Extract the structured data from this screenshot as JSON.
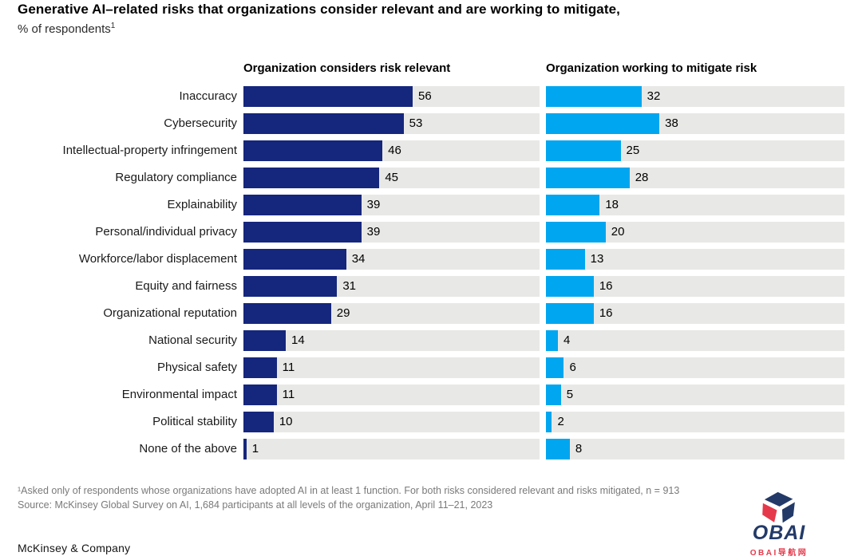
{
  "header": {
    "title": "Generative AI–related risks that organizations consider relevant and are working to mitigate,",
    "subtitle": "% of respondents",
    "subtitle_superscript": "1"
  },
  "chart_data": {
    "type": "bar",
    "orientation": "horizontal",
    "title": "Generative AI–related risks that organizations consider relevant and are working to mitigate, % of respondents",
    "categories": [
      "Inaccuracy",
      "Cybersecurity",
      "Intellectual-property infringement",
      "Regulatory compliance",
      "Explainability",
      "Personal/individual privacy",
      "Workforce/labor displacement",
      "Equity and fairness",
      "Organizational reputation",
      "National security",
      "Physical safety",
      "Environmental impact",
      "Political stability",
      "None of the above"
    ],
    "series": [
      {
        "name": "Organization considers risk relevant",
        "color": "#15267D",
        "axis_max": 98,
        "values": [
          56,
          53,
          46,
          45,
          39,
          39,
          34,
          31,
          29,
          14,
          11,
          11,
          10,
          1
        ]
      },
      {
        "name": "Organization working to mitigate risk",
        "color": "#00A6EF",
        "axis_max": 100,
        "values": [
          32,
          38,
          25,
          28,
          18,
          20,
          13,
          16,
          16,
          4,
          6,
          5,
          2,
          8
        ]
      }
    ],
    "track_color": "#E8E8E6",
    "value_labels_shown": true,
    "grid": false,
    "legend_position": "column-headers-above-each-panel"
  },
  "footnotes": [
    "¹Asked only of respondents whose organizations have adopted AI in at least 1 function. For both risks considered relevant and risks mitigated, n = 913",
    "Source: McKinsey Global Survey on AI, 1,684 participants at all levels of the organization, April 11–21, 2023"
  ],
  "footer": {
    "brand": "McKinsey & Company"
  },
  "watermark": {
    "logo_text": "OBAI",
    "logo_subtext": "OBAI导航网",
    "navy": "#233A68",
    "red": "#E5394B",
    "icon": "cube-icon"
  }
}
